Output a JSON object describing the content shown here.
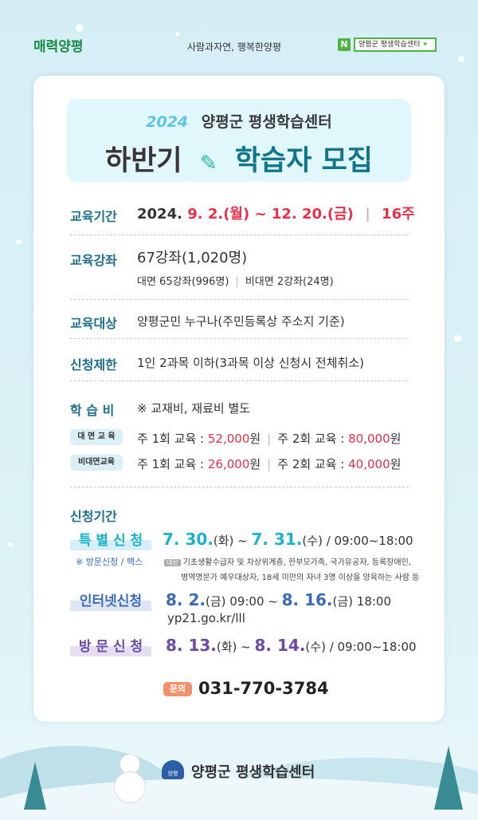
{
  "header": {
    "logo_text": "매력양평",
    "slogan": "사람과자연, 행복한양평",
    "search_badge": "N",
    "search_label": "양평군 평생학습센터"
  },
  "title": {
    "year": "2024",
    "org": "양평군 평생학습센터",
    "main_left": "하반기",
    "main_right": "학습자 모집",
    "icon": "pencil-icon"
  },
  "period": {
    "label": "교육기간",
    "year": "2024.",
    "range": "9. 2.(월) ~ 12. 20.(금)",
    "weeks": "16주"
  },
  "courses": {
    "label": "교육강좌",
    "total": "67강좌(1,020명)",
    "face": "대면 65강좌(996명)",
    "online": "비대면 2강좌(24명)"
  },
  "target": {
    "label": "교육대상",
    "value": "양평군민 누구나(주민등록상 주소지 기준)"
  },
  "limit": {
    "label": "신청제한",
    "value": "1인 2과목 이하(3과목 이상 신청시 전체취소)"
  },
  "fee": {
    "label": "학 습 비",
    "note": "※ 교재비, 재료비 별도",
    "rows": [
      {
        "type": "대 면 교 육",
        "w1": "주 1회 교육 : ",
        "p1": "52,000",
        "w2": "주 2회 교육 : ",
        "p2": "80,000",
        "unit": "원"
      },
      {
        "type": "비대면교육",
        "w1": "주 1회 교육 : ",
        "p1": "26,000",
        "w2": "주 2회 교육 : ",
        "p2": "40,000",
        "unit": "원"
      }
    ]
  },
  "apply": {
    "label": "신청기간",
    "special": {
      "tag": "특 별 신 청",
      "sub": "※ 방문신청 / 팩스",
      "d1": "7. 30.",
      "w1": "(화) ~ ",
      "d2": "7. 31.",
      "w2": "(수) / 09:00~18:00",
      "badge": "대상",
      "line1": "기초생활수급자 및 차상위계층, 한부모가족, 국가유공자, 등록장애인,",
      "line2": "병역명문가 예우대상자, 18세 미만의 자녀 3명 이상을 양육하는 사람 등"
    },
    "internet": {
      "tag": "인터넷신청",
      "d1": "8. 2.",
      "w1": "(금) 09:00 ~ ",
      "d2": "8. 16.",
      "w2": "(금) 18:00",
      "url": "yp21.go.kr/lll"
    },
    "visit": {
      "tag": "방 문 신 청",
      "d1": "8. 13.",
      "w1": "(화) ~ ",
      "d2": "8. 14.",
      "w2": "(수) / 09:00~18:00"
    }
  },
  "contact": {
    "badge": "문의",
    "phone": "031-770-3784"
  },
  "footer": {
    "org": "양평군 평생학습센터",
    "emblem_text": "양평"
  },
  "colors": {
    "teal_label": "#1d6f8c",
    "red": "#e8304a",
    "cyan": "#1bb3c8",
    "blue": "#3a6bb8",
    "purple": "#6b4aa8",
    "orange": "#f4916a"
  }
}
